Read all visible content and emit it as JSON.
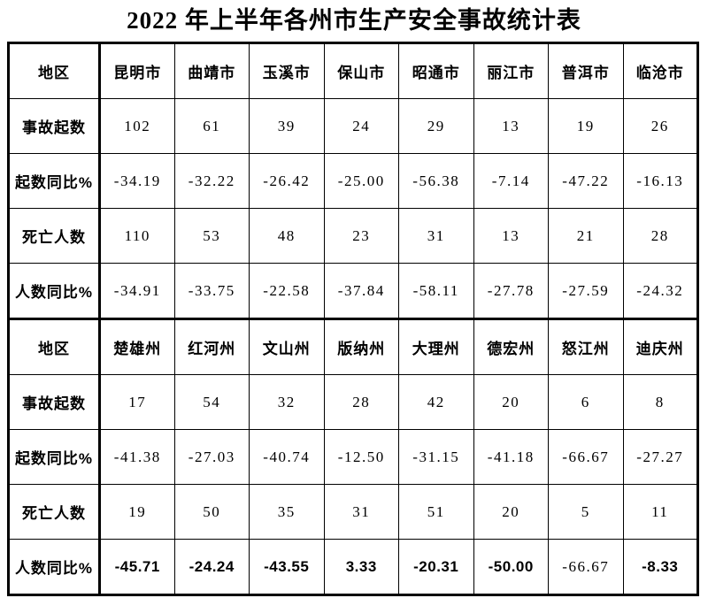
{
  "title": "2022 年上半年各州市生产安全事故统计表",
  "colors": {
    "background": "#ffffff",
    "text": "#000000",
    "border": "#000000"
  },
  "table": {
    "sections": [
      {
        "header_label": "地区",
        "columns": [
          "昆明市",
          "曲靖市",
          "玉溪市",
          "保山市",
          "昭通市",
          "丽江市",
          "普洱市",
          "临沧市"
        ],
        "rows": [
          {
            "label": "事故起数",
            "style": "serif",
            "values": [
              "102",
              "61",
              "39",
              "24",
              "29",
              "13",
              "19",
              "26"
            ]
          },
          {
            "label": "起数同比%",
            "style": "serif",
            "values": [
              "-34.19",
              "-32.22",
              "-26.42",
              "-25.00",
              "-56.38",
              "-7.14",
              "-47.22",
              "-16.13"
            ]
          },
          {
            "label": "死亡人数",
            "style": "serif",
            "values": [
              "110",
              "53",
              "48",
              "23",
              "31",
              "13",
              "21",
              "28"
            ]
          },
          {
            "label": "人数同比%",
            "style": "serif",
            "values": [
              "-34.91",
              "-33.75",
              "-22.58",
              "-37.84",
              "-58.11",
              "-27.78",
              "-27.59",
              "-24.32"
            ]
          }
        ]
      },
      {
        "header_label": "地区",
        "columns": [
          "楚雄州",
          "红河州",
          "文山州",
          "版纳州",
          "大理州",
          "德宏州",
          "怒江州",
          "迪庆州"
        ],
        "rows": [
          {
            "label": "事故起数",
            "style": "serif",
            "values": [
              "17",
              "54",
              "32",
              "28",
              "42",
              "20",
              "6",
              "8"
            ]
          },
          {
            "label": "起数同比%",
            "style": "serif",
            "values": [
              "-41.38",
              "-27.03",
              "-40.74",
              "-12.50",
              "-31.15",
              "-41.18",
              "-66.67",
              "-27.27"
            ]
          },
          {
            "label": "死亡人数",
            "style": "serif",
            "values": [
              "19",
              "50",
              "35",
              "31",
              "51",
              "20",
              "5",
              "11"
            ]
          },
          {
            "label": "人数同比%",
            "style": "sans",
            "cell_styles": [
              "sans",
              "sans",
              "sans",
              "sans",
              "sans",
              "sans",
              "serif",
              "sans"
            ],
            "values": [
              "-45.71",
              "-24.24",
              "-43.55",
              "3.33",
              "-20.31",
              "-50.00",
              "-66.67",
              "-8.33"
            ]
          }
        ]
      }
    ]
  }
}
